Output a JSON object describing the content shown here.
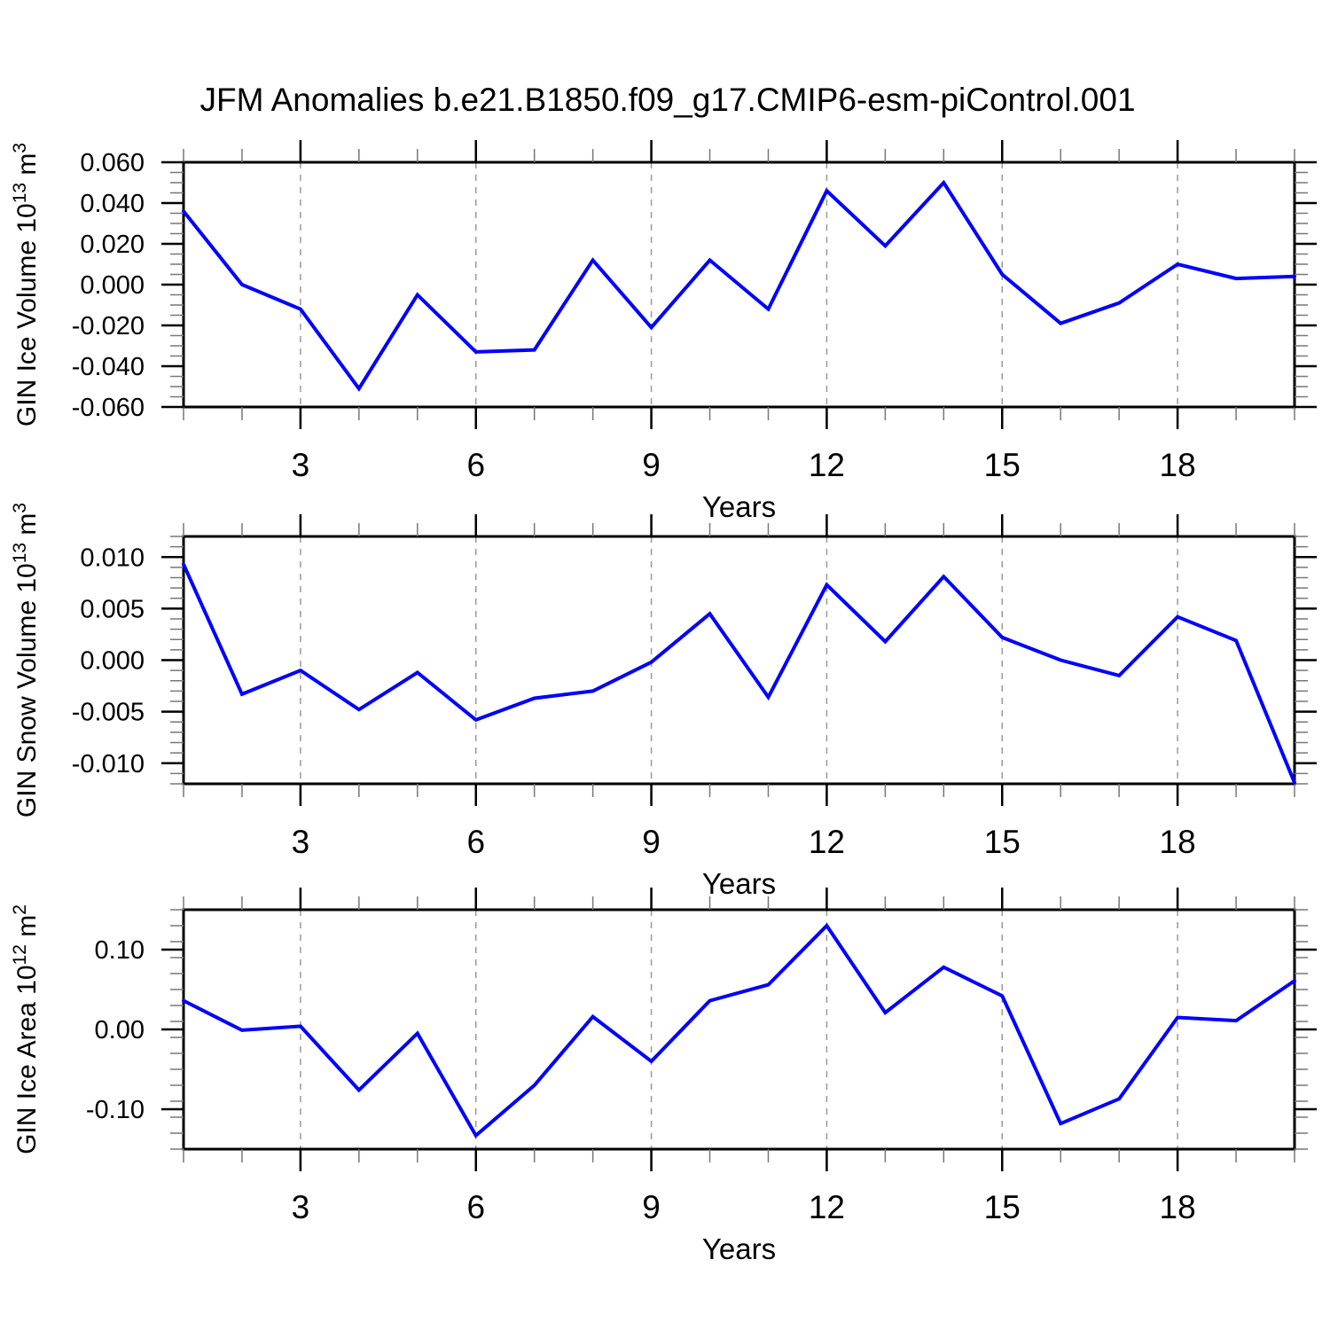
{
  "title": "JFM Anomalies b.e21.B1850.f09_g17.CMIP6-esm-piControl.001",
  "colors": {
    "line": "#0000ff",
    "axis": "#000000",
    "grid": "#999999",
    "minor_tick": "#777777"
  },
  "chart_data": [
    {
      "type": "line",
      "title": "",
      "xlabel": "Years",
      "ylabel": "GIN Ice Volume 10^13 m^3",
      "ylabel_parts": [
        {
          "text": "GIN Ice Volume 10",
          "sup": false
        },
        {
          "text": "13",
          "sup": true
        },
        {
          "text": " m",
          "sup": false
        },
        {
          "text": "3",
          "sup": true
        }
      ],
      "x": [
        1,
        2,
        3,
        4,
        5,
        6,
        7,
        8,
        9,
        10,
        11,
        12,
        13,
        14,
        15,
        16,
        17,
        18,
        19,
        20
      ],
      "y": [
        0.036,
        0.0,
        -0.012,
        -0.051,
        -0.005,
        -0.033,
        -0.032,
        0.012,
        -0.021,
        0.012,
        -0.012,
        0.046,
        0.019,
        0.05,
        0.005,
        -0.019,
        -0.009,
        0.01,
        0.003,
        0.004
      ],
      "xlim": [
        1,
        20
      ],
      "ylim": [
        -0.06,
        0.06
      ],
      "xticks": [
        3,
        6,
        9,
        12,
        15,
        18
      ],
      "x_minor_step": 1,
      "ytick_values": [
        0.06,
        0.04,
        0.02,
        0.0,
        -0.02,
        -0.04,
        -0.06
      ],
      "ytick_labels": [
        "0.060",
        "0.040",
        "0.020",
        "0.000",
        "-0.020",
        "-0.040",
        "-0.060"
      ],
      "y_minor_step": 0.005,
      "grid": "vertical-dashed",
      "legend": "none"
    },
    {
      "type": "line",
      "title": "",
      "xlabel": "Years",
      "ylabel": "GIN Snow Volume 10^13 m^3",
      "ylabel_parts": [
        {
          "text": "GIN Snow Volume 10",
          "sup": false
        },
        {
          "text": "13",
          "sup": true
        },
        {
          "text": " m",
          "sup": false
        },
        {
          "text": "3",
          "sup": true
        }
      ],
      "x": [
        1,
        2,
        3,
        4,
        5,
        6,
        7,
        8,
        9,
        10,
        11,
        12,
        13,
        14,
        15,
        16,
        17,
        18,
        19,
        20
      ],
      "y": [
        0.0093,
        -0.0033,
        -0.001,
        -0.0048,
        -0.0012,
        -0.0058,
        -0.0037,
        -0.003,
        -0.0002,
        0.0045,
        -0.0036,
        0.0073,
        0.0018,
        0.0081,
        0.0022,
        0.0,
        -0.0015,
        0.0042,
        0.0019,
        -0.0119
      ],
      "xlim": [
        1,
        20
      ],
      "ylim": [
        -0.012,
        0.012
      ],
      "xticks": [
        3,
        6,
        9,
        12,
        15,
        18
      ],
      "x_minor_step": 1,
      "ytick_values": [
        0.01,
        0.005,
        0.0,
        -0.005,
        -0.01
      ],
      "ytick_labels": [
        "0.010",
        "0.005",
        "0.000",
        "-0.005",
        "-0.010"
      ],
      "y_minor_step": 0.001,
      "grid": "vertical-dashed",
      "legend": "none"
    },
    {
      "type": "line",
      "title": "",
      "xlabel": "Years",
      "ylabel": "GIN Ice Area 10^12 m^2",
      "ylabel_parts": [
        {
          "text": "GIN Ice Area 10",
          "sup": false
        },
        {
          "text": "12",
          "sup": true
        },
        {
          "text": " m",
          "sup": false
        },
        {
          "text": "2",
          "sup": true
        }
      ],
      "x": [
        1,
        2,
        3,
        4,
        5,
        6,
        7,
        8,
        9,
        10,
        11,
        12,
        13,
        14,
        15,
        16,
        17,
        18,
        19,
        20
      ],
      "y": [
        0.036,
        -0.001,
        0.004,
        -0.076,
        -0.005,
        -0.133,
        -0.07,
        0.016,
        -0.04,
        0.036,
        0.056,
        0.13,
        0.021,
        0.078,
        0.042,
        -0.118,
        -0.087,
        0.015,
        0.011,
        0.061
      ],
      "xlim": [
        1,
        20
      ],
      "ylim": [
        -0.15,
        0.15
      ],
      "xticks": [
        3,
        6,
        9,
        12,
        15,
        18
      ],
      "x_minor_step": 1,
      "ytick_values": [
        0.1,
        0.0,
        -0.1
      ],
      "ytick_labels": [
        "0.10",
        "0.00",
        "-0.10"
      ],
      "y_minor_step": 0.02,
      "grid": "vertical-dashed",
      "legend": "none"
    }
  ]
}
